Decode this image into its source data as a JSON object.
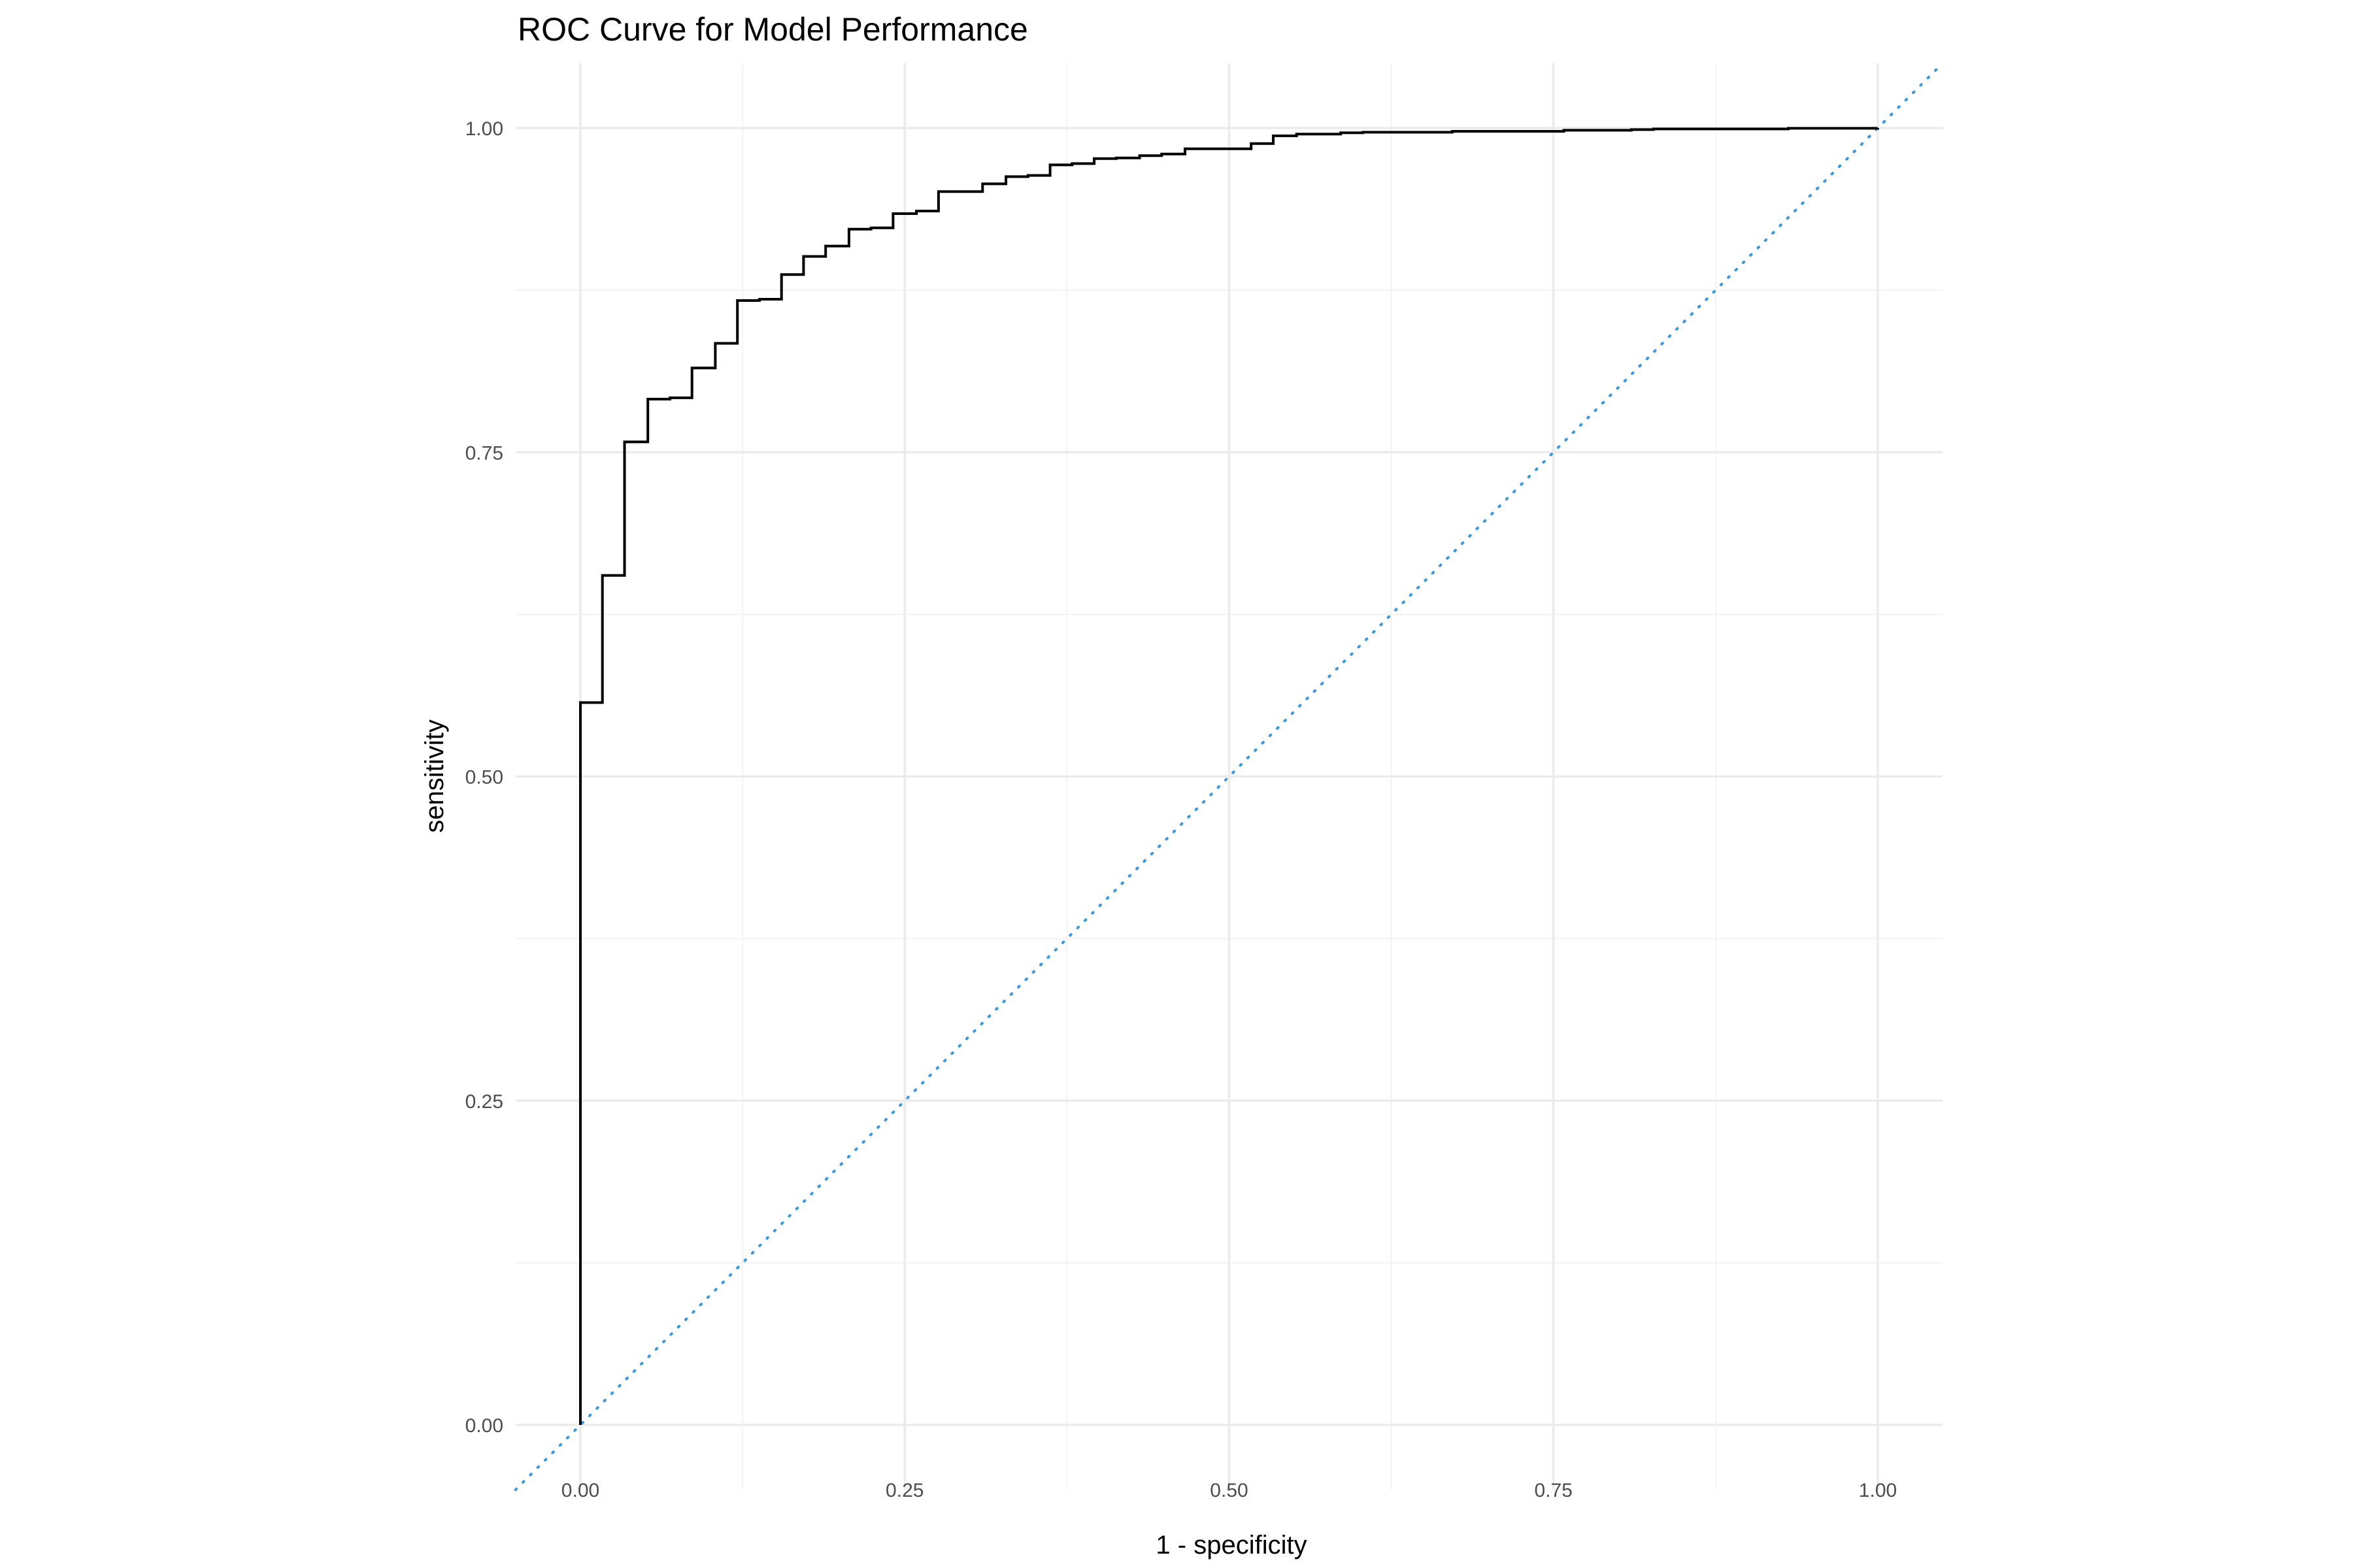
{
  "chart_data": {
    "type": "line",
    "title": "ROC Curve for Model Performance",
    "xlabel": "1 - specificity",
    "ylabel": "sensitivity",
    "xlim": [
      -0.05,
      1.05
    ],
    "ylim": [
      -0.05,
      1.05
    ],
    "grid": true,
    "x_ticks": [
      "0.00",
      "0.25",
      "0.50",
      "0.75",
      "1.00"
    ],
    "y_ticks": [
      "0.00",
      "0.25",
      "0.50",
      "0.75",
      "1.00"
    ],
    "x_tick_values": [
      0,
      0.25,
      0.5,
      0.75,
      1
    ],
    "y_tick_values": [
      0,
      0.25,
      0.5,
      0.75,
      1
    ],
    "colors": {
      "roc": "#000000",
      "reference": "#3a96dd",
      "grid": "#ebebeb"
    },
    "series": [
      {
        "style": "step",
        "points": [
          [
            0,
            0
          ],
          [
            0,
            0.557
          ],
          [
            0.017,
            0.557
          ],
          [
            0.017,
            0.655
          ],
          [
            0.034,
            0.655
          ],
          [
            0.034,
            0.758
          ],
          [
            0.052,
            0.758
          ],
          [
            0.052,
            0.791
          ],
          [
            0.069,
            0.791
          ],
          [
            0.069,
            0.792
          ],
          [
            0.086,
            0.792
          ],
          [
            0.086,
            0.815
          ],
          [
            0.104,
            0.815
          ],
          [
            0.104,
            0.834
          ],
          [
            0.121,
            0.834
          ],
          [
            0.121,
            0.867
          ],
          [
            0.138,
            0.867
          ],
          [
            0.138,
            0.868
          ],
          [
            0.155,
            0.868
          ],
          [
            0.155,
            0.887
          ],
          [
            0.172,
            0.887
          ],
          [
            0.172,
            0.901
          ],
          [
            0.189,
            0.901
          ],
          [
            0.189,
            0.909
          ],
          [
            0.207,
            0.909
          ],
          [
            0.207,
            0.922
          ],
          [
            0.224,
            0.922
          ],
          [
            0.224,
            0.923
          ],
          [
            0.241,
            0.923
          ],
          [
            0.241,
            0.934
          ],
          [
            0.259,
            0.934
          ],
          [
            0.259,
            0.936
          ],
          [
            0.276,
            0.936
          ],
          [
            0.276,
            0.951
          ],
          [
            0.31,
            0.951
          ],
          [
            0.31,
            0.957
          ],
          [
            0.328,
            0.957
          ],
          [
            0.328,
            0.9625
          ],
          [
            0.345,
            0.9625
          ],
          [
            0.345,
            0.9635
          ],
          [
            0.362,
            0.9635
          ],
          [
            0.362,
            0.9716
          ],
          [
            0.379,
            0.9716
          ],
          [
            0.379,
            0.9726
          ],
          [
            0.396,
            0.9726
          ],
          [
            0.396,
            0.9764
          ],
          [
            0.413,
            0.9764
          ],
          [
            0.413,
            0.977
          ],
          [
            0.431,
            0.977
          ],
          [
            0.431,
            0.9787
          ],
          [
            0.448,
            0.9787
          ],
          [
            0.448,
            0.98
          ],
          [
            0.466,
            0.98
          ],
          [
            0.466,
            0.984
          ],
          [
            0.517,
            0.984
          ],
          [
            0.517,
            0.988
          ],
          [
            0.534,
            0.988
          ],
          [
            0.534,
            0.994
          ],
          [
            0.552,
            0.994
          ],
          [
            0.552,
            0.9953
          ],
          [
            0.586,
            0.9953
          ],
          [
            0.586,
            0.9963
          ],
          [
            0.603,
            0.9963
          ],
          [
            0.603,
            0.9968
          ],
          [
            0.672,
            0.9968
          ],
          [
            0.672,
            0.9975
          ],
          [
            0.758,
            0.9975
          ],
          [
            0.758,
            0.9983
          ],
          [
            0.81,
            0.9983
          ],
          [
            0.81,
            0.9988
          ],
          [
            0.827,
            0.9988
          ],
          [
            0.827,
            0.9993
          ],
          [
            0.931,
            0.9993
          ],
          [
            0.931,
            0.9998
          ],
          [
            1,
            0.9998
          ],
          [
            1,
            1
          ]
        ]
      },
      {
        "style": "dotted",
        "points": [
          [
            -0.05,
            -0.05
          ],
          [
            1.05,
            1.05
          ]
        ]
      }
    ]
  }
}
